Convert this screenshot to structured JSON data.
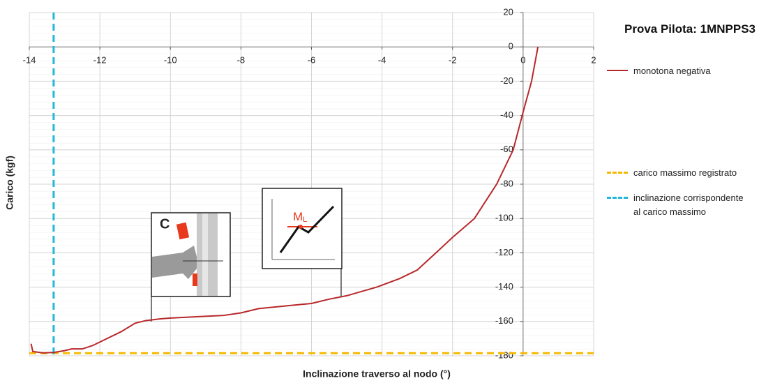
{
  "chart_data": {
    "type": "line",
    "title": "Prova Pilota: 1MNPPS3",
    "x_label": "Inclinazione traverso al nodo (°)",
    "y_label": "Carico (kgf)",
    "xlim": [
      -14,
      2
    ],
    "ylim": [
      -180,
      20
    ],
    "xticks": [
      -14,
      -12,
      -10,
      -8,
      -6,
      -4,
      -2,
      0,
      2
    ],
    "yticks": [
      20,
      0,
      -20,
      -40,
      -60,
      -80,
      -100,
      -120,
      -140,
      -160,
      -180
    ],
    "grid": true,
    "series": [
      {
        "name": "monotona negativa",
        "color": "#b8282a",
        "x": [
          -13.95,
          -13.9,
          -13.6,
          -13.3,
          -13.0,
          -12.8,
          -12.5,
          -12.2,
          -11.8,
          -11.4,
          -11.0,
          -10.7,
          -10.3,
          -10.0,
          -9.5,
          -9.0,
          -8.5,
          -8.0,
          -7.5,
          -7.0,
          -6.5,
          -6.0,
          -5.5,
          -5.0,
          -4.15,
          -3.5,
          -3.0,
          -2.47,
          -2.0,
          -1.38,
          -0.75,
          -0.28,
          0.0,
          0.24,
          0.42
        ],
        "values": [
          -173,
          -177.5,
          -178.3,
          -178,
          -177,
          -176,
          -176,
          -174,
          -170,
          -166,
          -161,
          -159.5,
          -158.5,
          -158,
          -157.5,
          -157,
          -156.5,
          -155,
          -152.5,
          -151.5,
          -150.5,
          -149.5,
          -147,
          -145,
          -140,
          -135,
          -130,
          -120,
          -111,
          -100,
          -80,
          -60,
          -38,
          -20,
          0
        ]
      }
    ],
    "reference_lines": [
      {
        "name": "carico massimo registrato",
        "color": "#f5b800",
        "y": -178.5
      },
      {
        "name": "inclinazione corrispondente\nal carico massimo",
        "color": "#22b8d8",
        "x": -13.31
      }
    ],
    "annotations": [
      {
        "text": "C"
      },
      {
        "text": "M",
        "sub": "L"
      }
    ]
  }
}
